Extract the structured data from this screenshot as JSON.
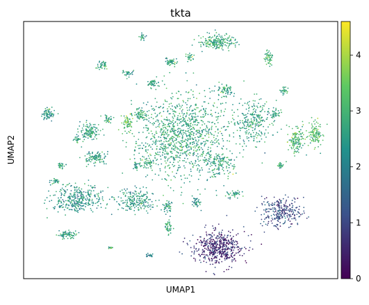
{
  "chart_data": {
    "type": "scatter",
    "title": "tkta",
    "xlabel": "UMAP1",
    "ylabel": "UMAP2",
    "x_ticks_visible": false,
    "y_ticks_visible": false,
    "grid": false,
    "colormap": "viridis",
    "colorbar": {
      "min": 0,
      "max": 4.6,
      "ticks": [
        0,
        1,
        2,
        3,
        4
      ],
      "placement": "right"
    },
    "colormap_stops": [
      "#440154",
      "#3b528b",
      "#21918c",
      "#5ec962",
      "#fde725"
    ],
    "clusters": [
      {
        "x": 0.5,
        "y": 0.56,
        "spread_x": 0.13,
        "spread_y": 0.15,
        "n": 1100,
        "mean": 2.7
      },
      {
        "x": 0.73,
        "y": 0.61,
        "spread_x": 0.06,
        "spread_y": 0.08,
        "n": 260,
        "mean": 2.6
      },
      {
        "x": 0.62,
        "y": 0.45,
        "spread_x": 0.05,
        "spread_y": 0.05,
        "n": 150,
        "mean": 2.7
      },
      {
        "x": 0.62,
        "y": 0.92,
        "spread_x": 0.055,
        "spread_y": 0.025,
        "n": 200,
        "mean": 2.8
      },
      {
        "x": 0.17,
        "y": 0.31,
        "spread_x": 0.075,
        "spread_y": 0.05,
        "n": 340,
        "mean": 2.4
      },
      {
        "x": 0.36,
        "y": 0.3,
        "spread_x": 0.05,
        "spread_y": 0.04,
        "n": 200,
        "mean": 2.5
      },
      {
        "x": 0.62,
        "y": 0.12,
        "spread_x": 0.075,
        "spread_y": 0.06,
        "n": 520,
        "mean": 0.6
      },
      {
        "x": 0.82,
        "y": 0.26,
        "spread_x": 0.06,
        "spread_y": 0.05,
        "n": 280,
        "mean": 1.1
      },
      {
        "x": 0.87,
        "y": 0.54,
        "spread_x": 0.025,
        "spread_y": 0.05,
        "n": 130,
        "mean": 3.1
      },
      {
        "x": 0.93,
        "y": 0.56,
        "spread_x": 0.02,
        "spread_y": 0.045,
        "n": 110,
        "mean": 3.2
      },
      {
        "x": 0.08,
        "y": 0.64,
        "spread_x": 0.018,
        "spread_y": 0.022,
        "n": 70,
        "mean": 2.4
      },
      {
        "x": 0.1,
        "y": 0.38,
        "spread_x": 0.012,
        "spread_y": 0.01,
        "n": 30,
        "mean": 2.6
      },
      {
        "x": 0.12,
        "y": 0.44,
        "spread_x": 0.012,
        "spread_y": 0.01,
        "n": 25,
        "mean": 2.8
      },
      {
        "x": 0.14,
        "y": 0.17,
        "spread_x": 0.03,
        "spread_y": 0.013,
        "n": 70,
        "mean": 2.7
      },
      {
        "x": 0.21,
        "y": 0.57,
        "spread_x": 0.03,
        "spread_y": 0.03,
        "n": 130,
        "mean": 2.6
      },
      {
        "x": 0.23,
        "y": 0.47,
        "spread_x": 0.03,
        "spread_y": 0.022,
        "n": 100,
        "mean": 2.6
      },
      {
        "x": 0.25,
        "y": 0.83,
        "spread_x": 0.017,
        "spread_y": 0.015,
        "n": 40,
        "mean": 2.6
      },
      {
        "x": 0.33,
        "y": 0.61,
        "spread_x": 0.018,
        "spread_y": 0.032,
        "n": 60,
        "mean": 3.3
      },
      {
        "x": 0.37,
        "y": 0.64,
        "spread_x": 0.015,
        "spread_y": 0.02,
        "n": 45,
        "mean": 2.9
      },
      {
        "x": 0.41,
        "y": 0.76,
        "spread_x": 0.018,
        "spread_y": 0.012,
        "n": 40,
        "mean": 2.8
      },
      {
        "x": 0.47,
        "y": 0.84,
        "spread_x": 0.02,
        "spread_y": 0.015,
        "n": 45,
        "mean": 2.7
      },
      {
        "x": 0.64,
        "y": 0.73,
        "spread_x": 0.025,
        "spread_y": 0.02,
        "n": 60,
        "mean": 2.7
      },
      {
        "x": 0.78,
        "y": 0.86,
        "spread_x": 0.012,
        "spread_y": 0.03,
        "n": 55,
        "mean": 2.9
      },
      {
        "x": 0.83,
        "y": 0.73,
        "spread_x": 0.012,
        "spread_y": 0.012,
        "n": 30,
        "mean": 2.7
      },
      {
        "x": 0.8,
        "y": 0.64,
        "spread_x": 0.015,
        "spread_y": 0.015,
        "n": 35,
        "mean": 2.6
      },
      {
        "x": 0.53,
        "y": 0.86,
        "spread_x": 0.012,
        "spread_y": 0.015,
        "n": 25,
        "mean": 2.8
      },
      {
        "x": 0.82,
        "y": 0.44,
        "spread_x": 0.012,
        "spread_y": 0.01,
        "n": 25,
        "mean": 2.7
      },
      {
        "x": 0.33,
        "y": 0.8,
        "spread_x": 0.018,
        "spread_y": 0.012,
        "n": 30,
        "mean": 2.7
      },
      {
        "x": 0.36,
        "y": 0.44,
        "spread_x": 0.015,
        "spread_y": 0.015,
        "n": 30,
        "mean": 2.6
      },
      {
        "x": 0.46,
        "y": 0.2,
        "spread_x": 0.012,
        "spread_y": 0.022,
        "n": 40,
        "mean": 2.8
      },
      {
        "x": 0.4,
        "y": 0.45,
        "spread_x": 0.018,
        "spread_y": 0.015,
        "n": 40,
        "mean": 2.7
      },
      {
        "x": 0.46,
        "y": 0.28,
        "spread_x": 0.015,
        "spread_y": 0.022,
        "n": 45,
        "mean": 2.6
      },
      {
        "x": 0.55,
        "y": 0.3,
        "spread_x": 0.015,
        "spread_y": 0.018,
        "n": 40,
        "mean": 2.4
      },
      {
        "x": 0.67,
        "y": 0.33,
        "spread_x": 0.02,
        "spread_y": 0.015,
        "n": 40,
        "mean": 2.6
      },
      {
        "x": 0.27,
        "y": 0.62,
        "spread_x": 0.015,
        "spread_y": 0.015,
        "n": 30,
        "mean": 2.7
      },
      {
        "x": 0.17,
        "y": 0.54,
        "spread_x": 0.012,
        "spread_y": 0.01,
        "n": 25,
        "mean": 2.6
      },
      {
        "x": 0.38,
        "y": 0.94,
        "spread_x": 0.01,
        "spread_y": 0.012,
        "n": 20,
        "mean": 2.6
      },
      {
        "x": 0.4,
        "y": 0.09,
        "spread_x": 0.012,
        "spread_y": 0.006,
        "n": 20,
        "mean": 2.1
      },
      {
        "x": 0.28,
        "y": 0.12,
        "spread_x": 0.008,
        "spread_y": 0.006,
        "n": 15,
        "mean": 3.0
      }
    ]
  }
}
